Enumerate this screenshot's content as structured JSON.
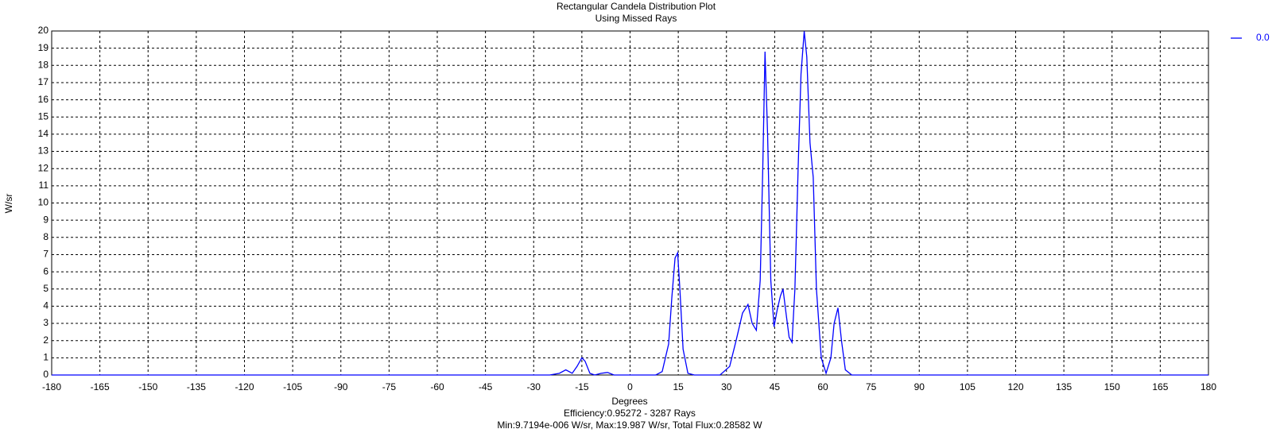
{
  "chart_data": {
    "type": "line",
    "title": "Rectangular Candela Distribution Plot",
    "subtitle": "Using Missed Rays",
    "x_label": "Degrees",
    "y_label": "W/sr",
    "annotations": [
      "Efficiency:0.95272 - 3287 Rays",
      "Min:9.7194e-006 W/sr, Max:19.987 W/sr, Total Flux:0.28582 W"
    ],
    "x": [
      -180,
      -25,
      -22,
      -20,
      -18,
      -16.5,
      -15,
      -14,
      -12.5,
      -11,
      -9,
      -7,
      -5,
      -3,
      8,
      10,
      12,
      13,
      14,
      14.8,
      15.5,
      16.5,
      18,
      20,
      28,
      31,
      33,
      35,
      36.7,
      38,
      39.3,
      40.5,
      41.3,
      42,
      42.8,
      43.8,
      44.8,
      45.8,
      46.8,
      47.6,
      48.6,
      49.5,
      50.4,
      51.3,
      52.3,
      53.2,
      54.2,
      55,
      56,
      57,
      58,
      59.5,
      61,
      62.5,
      63.5,
      64.7,
      65.8,
      67,
      69,
      180
    ],
    "series": [
      {
        "name": "0.0",
        "color": "#0000ff",
        "values": [
          0,
          0,
          0.1,
          0.3,
          0.1,
          0.5,
          1.0,
          0.8,
          0.1,
          0,
          0.1,
          0.15,
          0,
          0,
          0,
          0.2,
          1.8,
          4.5,
          6.8,
          7.1,
          5.0,
          1.5,
          0.1,
          0,
          0,
          0.5,
          2.0,
          3.6,
          4.1,
          3.0,
          2.6,
          5.5,
          12.0,
          18.8,
          14.0,
          5.5,
          2.8,
          3.8,
          4.6,
          5.0,
          3.5,
          2.2,
          1.9,
          5.0,
          12.0,
          17.5,
          19.987,
          18.5,
          13.5,
          11.5,
          5.0,
          1.0,
          0.1,
          1.0,
          3.0,
          3.9,
          2.0,
          0.3,
          0,
          0
        ]
      }
    ],
    "xlim": [
      -180,
      180
    ],
    "xticks": [
      -180,
      -165,
      -150,
      -135,
      -120,
      -105,
      -90,
      -75,
      -60,
      -45,
      -30,
      -15,
      0,
      15,
      30,
      45,
      60,
      75,
      90,
      105,
      120,
      135,
      150,
      165,
      180
    ],
    "ylim": [
      0,
      20
    ],
    "yticks": [
      0,
      1,
      2,
      3,
      4,
      5,
      6,
      7,
      8,
      9,
      10,
      11,
      12,
      13,
      14,
      15,
      16,
      17,
      18,
      19,
      20
    ],
    "grid": true,
    "legend": "top-right"
  }
}
